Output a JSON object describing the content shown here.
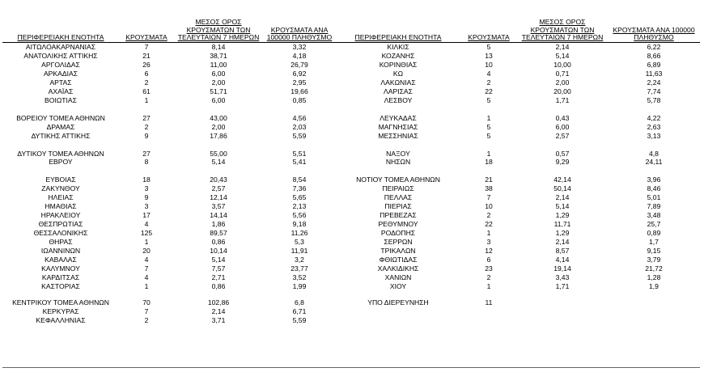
{
  "headers": {
    "region": "ΠΕΡΙΦΕΡΕΙΑΚΗ ΕΝΟΤΗΤΑ",
    "cases": "ΚΡΟΥΣΜΑΤΑ",
    "avg7": "ΜΕΣΟΣ ΟΡΟΣ ΚΡΟΥΣΜΑΤΩΝ ΤΩΝ ΤΕΛΕΥΤΑΙΩΝ 7 ΗΜΕΡΩΝ",
    "per100k": "ΚΡΟΥΣΜΑΤΑ ΑΝΑ 100000 ΠΛΗΘΥΣΜΟ"
  },
  "rows": [
    {
      "left": [
        "ΑΙΤΩΛΟΑΚΑΡΝΑΝΙΑΣ",
        "7",
        "8,14",
        "3,32"
      ],
      "right": [
        "ΚΙΛΚΙΣ",
        "5",
        "2,14",
        "6,22"
      ]
    },
    {
      "left": [
        "ΑΝΑΤΟΛΙΚΗΣ ΑΤΤΙΚΗΣ",
        "21",
        "38,71",
        "4,18"
      ],
      "right": [
        "ΚΟΖΑΝΗΣ",
        "13",
        "5,14",
        "8,66"
      ]
    },
    {
      "left": [
        "ΑΡΓΟΛΙΔΑΣ",
        "26",
        "11,00",
        "26,79"
      ],
      "right": [
        "ΚΟΡΙΝΘΙΑΣ",
        "10",
        "10,00",
        "6,89"
      ]
    },
    {
      "left": [
        "ΑΡΚΑΔΙΑΣ",
        "6",
        "6,00",
        "6,92"
      ],
      "right": [
        "ΚΩ",
        "4",
        "0,71",
        "11,63"
      ]
    },
    {
      "left": [
        "ΑΡΤΑΣ",
        "2",
        "2,00",
        "2,95"
      ],
      "right": [
        "ΛΑΚΩΝΙΑΣ",
        "2",
        "2,00",
        "2,24"
      ]
    },
    {
      "left": [
        "ΑΧΑΪΑΣ",
        "61",
        "51,71",
        "19,66"
      ],
      "right": [
        "ΛΑΡΙΣΑΣ",
        "22",
        "20,00",
        "7,74"
      ]
    },
    {
      "left": [
        "ΒΟΙΩΤΙΑΣ",
        "1",
        "6,00",
        "0,85"
      ],
      "right": [
        "ΛΕΣΒΟΥ",
        "5",
        "1,71",
        "5,78"
      ]
    },
    {
      "gap": true
    },
    {
      "left": [
        "ΒΟΡΕΙΟΥ ΤΟΜΕΑ ΑΘΗΝΩΝ",
        "27",
        "43,00",
        "4,56"
      ],
      "right": [
        "ΛΕΥΚΑΔΑΣ",
        "1",
        "0,43",
        "4,22"
      ]
    },
    {
      "left": [
        "ΔΡΑΜΑΣ",
        "2",
        "2,00",
        "2,03"
      ],
      "right": [
        "ΜΑΓΝΗΣΙΑΣ",
        "5",
        "6,00",
        "2,63"
      ]
    },
    {
      "left": [
        "ΔΥΤΙΚΗΣ ΑΤΤΙΚΗΣ",
        "9",
        "17,86",
        "5,59"
      ],
      "right": [
        "ΜΕΣΣΗΝΙΑΣ",
        "5",
        "2,57",
        "3,13"
      ]
    },
    {
      "gap": true
    },
    {
      "left": [
        "ΔΥΤΙΚΟΥ ΤΟΜΕΑ ΑΘΗΝΩΝ",
        "27",
        "55,00",
        "5,51"
      ],
      "right": [
        "ΝΑΞΟΥ",
        "1",
        "0,57",
        "4,8"
      ]
    },
    {
      "left": [
        "ΕΒΡΟΥ",
        "8",
        "5,14",
        "5,41"
      ],
      "right": [
        "ΝΗΣΩΝ",
        "18",
        "9,29",
        "24,11"
      ]
    },
    {
      "gap": true
    },
    {
      "left": [
        "ΕΥΒΟΙΑΣ",
        "18",
        "20,43",
        "8,54"
      ],
      "right": [
        "ΝΟΤΙΟΥ ΤΟΜΕΑ ΑΘΗΝΩΝ",
        "21",
        "42,14",
        "3,96"
      ]
    },
    {
      "left": [
        "ΖΑΚΥΝΘΟΥ",
        "3",
        "2,57",
        "7,36"
      ],
      "right": [
        "ΠΕΙΡΑΙΩΣ",
        "38",
        "50,14",
        "8,46"
      ]
    },
    {
      "left": [
        "ΗΛΕΙΑΣ",
        "9",
        "12,14",
        "5,65"
      ],
      "right": [
        "ΠΕΛΛΑΣ",
        "7",
        "2,14",
        "5,01"
      ]
    },
    {
      "left": [
        "ΗΜΑΘΙΑΣ",
        "3",
        "3,57",
        "2,13"
      ],
      "right": [
        "ΠΙΕΡΙΑΣ",
        "10",
        "5,14",
        "7,89"
      ]
    },
    {
      "left": [
        "ΗΡΑΚΛΕΙΟΥ",
        "17",
        "14,14",
        "5,56"
      ],
      "right": [
        "ΠΡΕΒΕΖΑΣ",
        "2",
        "1,29",
        "3,48"
      ]
    },
    {
      "left": [
        "ΘΕΣΠΡΩΤΙΑΣ",
        "4",
        "1,86",
        "9,18"
      ],
      "right": [
        "ΡΕΘΥΜΝΟΥ",
        "22",
        "11,71",
        "25,7"
      ]
    },
    {
      "left": [
        "ΘΕΣΣΑΛΟΝΙΚΗΣ",
        "125",
        "89,57",
        "11,26"
      ],
      "right": [
        "ΡΟΔΟΠΗΣ",
        "1",
        "1,29",
        "0,89"
      ]
    },
    {
      "left": [
        "ΘΗΡΑΣ",
        "1",
        "0,86",
        "5,3"
      ],
      "right": [
        "ΣΕΡΡΩΝ",
        "3",
        "2,14",
        "1,7"
      ]
    },
    {
      "left": [
        "ΙΩΑΝΝΙΝΩΝ",
        "20",
        "10,14",
        "11,91"
      ],
      "right": [
        "ΤΡΙΚΑΛΩΝ",
        "12",
        "8,57",
        "9,15"
      ]
    },
    {
      "left": [
        "ΚΑΒΑΛΑΣ",
        "4",
        "5,14",
        "3,2"
      ],
      "right": [
        "ΦΘΙΩΤΙΔΑΣ",
        "6",
        "4,14",
        "3,79"
      ]
    },
    {
      "left": [
        "ΚΑΛΥΜΝΟΥ",
        "7",
        "7,57",
        "23,77"
      ],
      "right": [
        "ΧΑΛΚΙΔΙΚΗΣ",
        "23",
        "19,14",
        "21,72"
      ]
    },
    {
      "left": [
        "ΚΑΡΔΙΤΣΑΣ",
        "4",
        "2,71",
        "3,52"
      ],
      "right": [
        "ΧΑΝΙΩΝ",
        "2",
        "3,43",
        "1,28"
      ]
    },
    {
      "left": [
        "ΚΑΣΤΟΡΙΑΣ",
        "1",
        "0,86",
        "1,99"
      ],
      "right": [
        "ΧΙΟΥ",
        "1",
        "1,71",
        "1,9"
      ]
    },
    {
      "tall": true,
      "left": [
        "ΚΕΝΤΡΙΚΟΥ ΤΟΜΕΑ ΑΘΗΝΩΝ",
        "70",
        "102,86",
        "6,8"
      ],
      "right": [
        "ΥΠΟ ΔΙΕΡΕΥΝΗΣΗ",
        "11",
        "",
        ""
      ]
    },
    {
      "left": [
        "ΚΕΡΚΥΡΑΣ",
        "7",
        "2,14",
        "6,71"
      ],
      "right": [
        "",
        "",
        "",
        ""
      ]
    },
    {
      "left": [
        "ΚΕΦΑΛΛΗΝΙΑΣ",
        "2",
        "3,71",
        "5,59"
      ],
      "right": [
        "",
        "",
        "",
        ""
      ]
    }
  ]
}
